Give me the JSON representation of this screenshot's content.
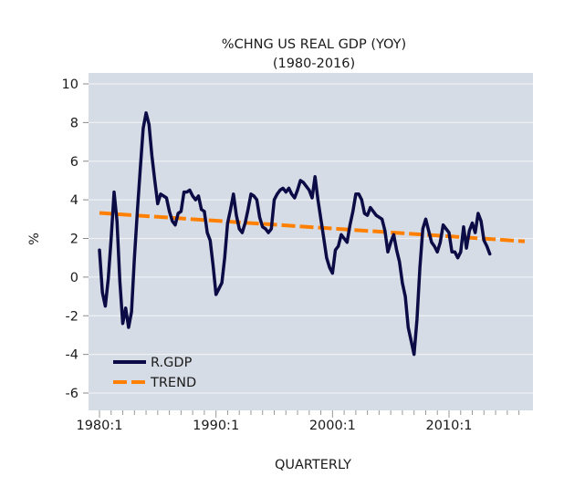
{
  "chart_data": {
    "type": "line",
    "title": "%CHNG US REAL GDP (YOY)",
    "subtitle": "(1980-2016)",
    "xlabel": "QUARTERLY",
    "ylabel": "%",
    "ylim": [
      -6.6,
      10.6
    ],
    "xlim": [
      1979.75,
      2016.75
    ],
    "yticks": [
      10,
      8,
      6,
      4,
      2,
      0,
      -2,
      -4,
      -6
    ],
    "ytick_labels": [
      "10",
      "8",
      "6",
      "4",
      "2",
      "0",
      "-2",
      "-4",
      "-6"
    ],
    "xticks": [
      1980,
      1990,
      2000,
      2010
    ],
    "xtick_labels": [
      "1980:1",
      "1990:1",
      "2000:1",
      "2010:1"
    ],
    "grid": "horizontal",
    "legend_position": "bottom-left",
    "colors": {
      "plot_bg": "#d6dce5",
      "gdp": "#0b0b45",
      "trend": "#ff8000",
      "grid": "#eef0f4"
    },
    "series": [
      {
        "name": "R.GDP",
        "style": "solid",
        "x_start": 1980.0,
        "x_step": 0.25,
        "values": [
          1.4,
          -0.8,
          -1.5,
          -0.1,
          2.0,
          4.4,
          2.9,
          -0.2,
          -2.4,
          -1.6,
          -2.6,
          -1.8,
          1.0,
          3.4,
          5.6,
          7.7,
          8.5,
          7.9,
          6.3,
          5.0,
          3.8,
          4.3,
          4.2,
          4.1,
          3.4,
          2.9,
          2.7,
          3.3,
          3.4,
          4.4,
          4.4,
          4.5,
          4.2,
          4.0,
          4.2,
          3.5,
          3.4,
          2.3,
          1.9,
          0.6,
          -0.9,
          -0.6,
          -0.3,
          1.0,
          2.8,
          3.5,
          4.3,
          3.2,
          2.5,
          2.3,
          2.8,
          3.5,
          4.3,
          4.2,
          4.0,
          3.1,
          2.6,
          2.5,
          2.3,
          2.5,
          4.0,
          4.3,
          4.5,
          4.6,
          4.4,
          4.6,
          4.3,
          4.1,
          4.5,
          5.0,
          4.9,
          4.7,
          4.5,
          4.1,
          5.2,
          4.0,
          3.0,
          2.0,
          1.0,
          0.5,
          0.2,
          1.4,
          1.6,
          2.2,
          2.0,
          1.8,
          2.7,
          3.4,
          4.3,
          4.3,
          4.0,
          3.3,
          3.2,
          3.6,
          3.4,
          3.2,
          3.1,
          3.0,
          2.4,
          1.3,
          1.8,
          2.2,
          1.4,
          0.8,
          -0.3,
          -1.0,
          -2.6,
          -3.3,
          -4.0,
          -2.2,
          0.5,
          2.5,
          3.0,
          2.4,
          1.8,
          1.6,
          1.3,
          1.8,
          2.7,
          2.5,
          2.3,
          1.3,
          1.3,
          1.0,
          1.3,
          2.6,
          1.5,
          2.4,
          2.8,
          2.3,
          3.3,
          2.9,
          1.9,
          1.6,
          1.2
        ]
      },
      {
        "name": "TREND",
        "style": "dashed",
        "x": [
          1980.0,
          2016.5
        ],
        "values": [
          3.32,
          1.85
        ]
      }
    ]
  }
}
